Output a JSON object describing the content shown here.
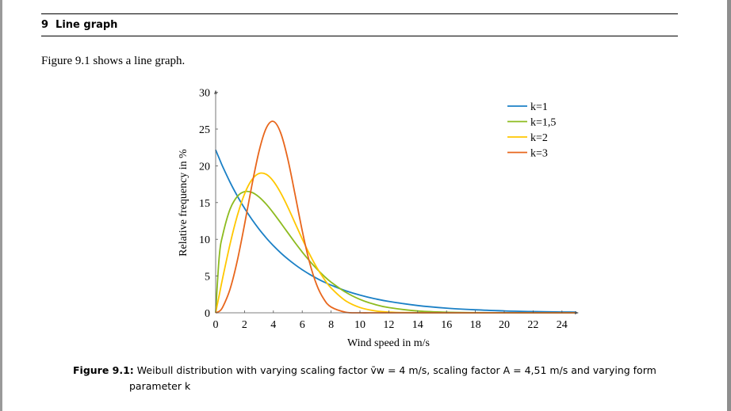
{
  "section": {
    "number": "9",
    "title": "Line graph"
  },
  "paragraph": "Figure 9.1 shows a line graph.",
  "caption": {
    "label": "Figure 9.1:",
    "text": "Weibull distribution with varying scaling factor v̄w = 4 m/s, scaling factor A = 4,51 m/s and varying form",
    "text_continued": "parameter k"
  },
  "chart_data": {
    "type": "line",
    "title": "",
    "xlabel": "Wind speed in m/s",
    "ylabel": "Relative frequency in %",
    "xlim": [
      0,
      25
    ],
    "ylim": [
      0,
      30
    ],
    "x_ticks": [
      0,
      2,
      4,
      6,
      8,
      10,
      12,
      14,
      16,
      18,
      20,
      22,
      24
    ],
    "y_ticks": [
      0,
      5,
      10,
      15,
      20,
      25,
      30
    ],
    "grid": false,
    "legend_position": "top-right",
    "x": [
      0,
      0.25,
      0.5,
      1,
      1.5,
      2,
      2.5,
      3,
      3.5,
      4,
      4.5,
      5,
      5.5,
      6,
      6.5,
      7,
      7.5,
      8,
      9,
      10,
      11,
      12,
      14,
      16,
      18,
      20,
      22,
      24,
      25
    ],
    "series": [
      {
        "name": "k=1",
        "color": "#1b80c6",
        "values": [
          22.17,
          20.98,
          19.84,
          17.76,
          15.9,
          14.23,
          12.74,
          11.4,
          10.2,
          9.13,
          8.17,
          7.32,
          6.55,
          5.86,
          5.25,
          4.7,
          4.2,
          3.76,
          3.01,
          2.41,
          1.93,
          1.55,
          0.99,
          0.64,
          0.41,
          0.26,
          0.17,
          0.11,
          0.09
        ]
      },
      {
        "name": "k=1,5",
        "color": "#8dbb1f",
        "values": [
          0,
          7.73,
          10.67,
          14.11,
          15.83,
          16.49,
          16.39,
          15.77,
          14.79,
          13.59,
          12.26,
          10.9,
          9.55,
          8.27,
          7.08,
          5.99,
          5.02,
          4.17,
          2.81,
          1.82,
          1.15,
          0.71,
          0.25,
          0.08,
          0.02,
          0.01,
          0,
          0,
          0
        ]
      },
      {
        "name": "k=2",
        "color": "#ffc700",
        "values": [
          0,
          2.45,
          4.86,
          9.36,
          13.21,
          16.16,
          18.08,
          18.95,
          18.85,
          17.91,
          16.35,
          14.39,
          12.22,
          10.05,
          8.01,
          6.19,
          4.65,
          3.38,
          1.65,
          0.72,
          0.28,
          0.1,
          0.01,
          0,
          0,
          0,
          0,
          0,
          0
        ]
      },
      {
        "name": "k=3",
        "color": "#e8661c",
        "values": [
          0,
          0.2,
          0.82,
          3.23,
          7.09,
          11.99,
          17.24,
          21.93,
          25.11,
          26.05,
          24.52,
          20.93,
          16.13,
          11.17,
          6.92,
          3.81,
          1.85,
          0.79,
          0.09,
          0,
          0,
          0,
          0,
          0,
          0,
          0,
          0,
          0,
          0
        ]
      }
    ]
  }
}
